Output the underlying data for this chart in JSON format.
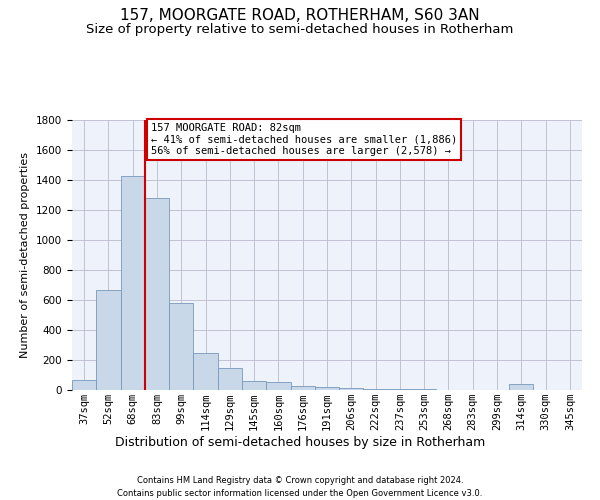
{
  "title1": "157, MOORGATE ROAD, ROTHERHAM, S60 3AN",
  "title2": "Size of property relative to semi-detached houses in Rotherham",
  "xlabel": "Distribution of semi-detached houses by size in Rotherham",
  "ylabel": "Number of semi-detached properties",
  "footer1": "Contains HM Land Registry data © Crown copyright and database right 2024.",
  "footer2": "Contains public sector information licensed under the Open Government Licence v3.0.",
  "categories": [
    "37sqm",
    "52sqm",
    "68sqm",
    "83sqm",
    "99sqm",
    "114sqm",
    "129sqm",
    "145sqm",
    "160sqm",
    "176sqm",
    "191sqm",
    "206sqm",
    "222sqm",
    "237sqm",
    "253sqm",
    "268sqm",
    "283sqm",
    "299sqm",
    "314sqm",
    "330sqm",
    "345sqm"
  ],
  "values": [
    65,
    670,
    1430,
    1280,
    580,
    250,
    145,
    60,
    55,
    30,
    20,
    15,
    5,
    5,
    5,
    0,
    0,
    0,
    40,
    0,
    0
  ],
  "bar_color": "#c8d8e8",
  "bar_edge_color": "#7799bb",
  "vline_color": "#cc0000",
  "annotation_line1": "157 MOORGATE ROAD: 82sqm",
  "annotation_line2": "← 41% of semi-detached houses are smaller (1,886)",
  "annotation_line3": "56% of semi-detached houses are larger (2,578) →",
  "annotation_box_color": "#cc0000",
  "ylim": [
    0,
    1800
  ],
  "yticks": [
    0,
    200,
    400,
    600,
    800,
    1000,
    1200,
    1400,
    1600,
    1800
  ],
  "grid_color": "#bbbbcc",
  "bg_color": "#eef2fa",
  "title1_fontsize": 11,
  "title2_fontsize": 9.5,
  "ylabel_fontsize": 8,
  "xlabel_fontsize": 9,
  "tick_fontsize": 7.5,
  "footer_fontsize": 6,
  "ann_fontsize": 7.5
}
